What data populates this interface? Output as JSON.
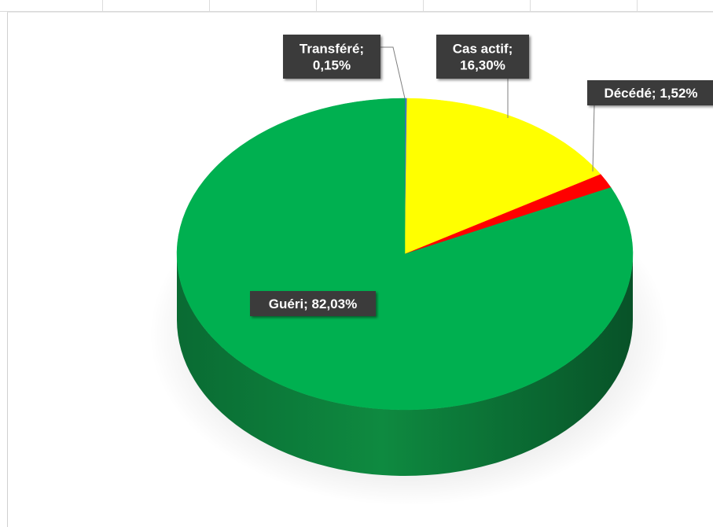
{
  "chart_data": {
    "type": "pie",
    "title": "",
    "slices": [
      {
        "label": "Transféré",
        "value": 0.15,
        "display": "Transféré;\n0,15%",
        "color": "#4472c4"
      },
      {
        "label": "Cas actif",
        "value": 16.3,
        "display": "Cas actif;\n16,30%",
        "color": "#ffff00"
      },
      {
        "label": "Décédé",
        "value": 1.52,
        "display": "Décédé; 1,52%",
        "color": "#ff0000"
      },
      {
        "label": "Guéri",
        "value": 82.03,
        "display": "Guéri; 82,03%",
        "color": "#00b050"
      }
    ],
    "legend": "none",
    "start_angle": "12 o'clock",
    "direction": "clockwise",
    "style": "3D"
  }
}
